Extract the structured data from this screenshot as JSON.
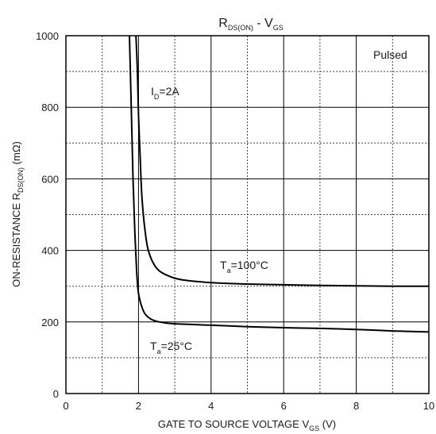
{
  "chart_data": {
    "type": "line",
    "title": {
      "main": "R",
      "main_sub": "DS(ON)",
      "sep": " - V",
      "sep_sub": "GS"
    },
    "xlabel": {
      "main": "GATE TO SOURCE VOLTAGE V",
      "sub": "GS",
      "unit": " (V)"
    },
    "ylabel": {
      "main": "ON-RESISTANCE R",
      "sub": "DS(ON)",
      "unit": " (mΩ)"
    },
    "xlim": [
      0,
      10
    ],
    "ylim": [
      0,
      1000
    ],
    "x_ticks": [
      0,
      2,
      4,
      6,
      8,
      10
    ],
    "y_ticks": [
      0,
      200,
      400,
      600,
      800,
      1000
    ],
    "x_minor_step": 1,
    "y_minor_step": 100,
    "grid": true,
    "annotations": {
      "pulsed": "Pulsed",
      "id": {
        "main": "I",
        "sub": "D",
        "rest": "=2A"
      },
      "t100": {
        "main": "T",
        "sub": "a",
        "rest": "=100°C"
      },
      "t25": {
        "main": "T",
        "sub": "a",
        "rest": "=25°C"
      }
    },
    "series": [
      {
        "points": [
          [
            1.93,
            1000
          ],
          [
            1.97,
            900
          ],
          [
            2.0,
            780
          ],
          [
            2.05,
            650
          ],
          [
            2.1,
            540
          ],
          [
            2.2,
            440
          ],
          [
            2.3,
            390
          ],
          [
            2.5,
            350
          ],
          [
            2.8,
            330
          ],
          [
            3.2,
            318
          ],
          [
            4,
            310
          ],
          [
            5,
            306
          ],
          [
            6,
            304
          ],
          [
            7,
            302
          ],
          [
            8,
            301
          ],
          [
            9,
            300
          ],
          [
            10,
            300
          ]
        ]
      },
      {
        "points": [
          [
            1.75,
            1000
          ],
          [
            1.8,
            800
          ],
          [
            1.85,
            600
          ],
          [
            1.9,
            450
          ],
          [
            1.95,
            340
          ],
          [
            2.0,
            280
          ],
          [
            2.1,
            240
          ],
          [
            2.2,
            220
          ],
          [
            2.4,
            205
          ],
          [
            2.7,
            198
          ],
          [
            3.0,
            195
          ],
          [
            4,
            191
          ],
          [
            5,
            187
          ],
          [
            6,
            184
          ],
          [
            7,
            182
          ],
          [
            8,
            179
          ],
          [
            9,
            175
          ],
          [
            10,
            172
          ]
        ]
      }
    ]
  }
}
